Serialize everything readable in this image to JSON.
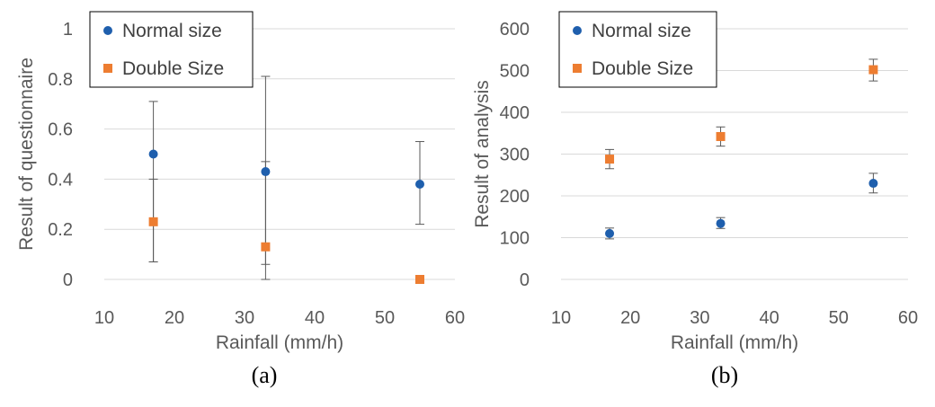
{
  "chart_data": [
    {
      "type": "scatter",
      "caption": "(a)",
      "xlabel": "Rainfall (mm/h)",
      "ylabel": "Result of questionnaire",
      "xlim": [
        10,
        60
      ],
      "ylim": [
        0,
        1
      ],
      "xticks": [
        "10",
        "20",
        "30",
        "40",
        "50",
        "60"
      ],
      "yticks": [
        "0",
        "0.2",
        "0.4",
        "0.6",
        "0.8",
        "1"
      ],
      "grid": "horizontal",
      "legend_position": "top-left",
      "series": [
        {
          "name": "Normal size",
          "marker": "circle",
          "color": "#1F5FAD",
          "points": [
            {
              "x": 17,
              "y": 0.5,
              "err_low": 0.07,
              "err_high": 0.71
            },
            {
              "x": 33,
              "y": 0.43,
              "err_low": 0.0,
              "err_high": 0.81
            },
            {
              "x": 55,
              "y": 0.38,
              "err_low": 0.22,
              "err_high": 0.55
            }
          ]
        },
        {
          "name": "Double Size",
          "marker": "square",
          "color": "#ED7D31",
          "points": [
            {
              "x": 17,
              "y": 0.23,
              "err_low": 0.07,
              "err_high": 0.4
            },
            {
              "x": 33,
              "y": 0.13,
              "err_low": 0.06,
              "err_high": 0.47
            },
            {
              "x": 55,
              "y": 0.0
            }
          ]
        }
      ]
    },
    {
      "type": "scatter",
      "caption": "(b)",
      "xlabel": "Rainfall (mm/h)",
      "ylabel": "Result of analysis",
      "xlim": [
        10,
        60
      ],
      "ylim": [
        0,
        600
      ],
      "xticks": [
        "10",
        "20",
        "30",
        "40",
        "50",
        "60"
      ],
      "yticks": [
        "0",
        "100",
        "200",
        "300",
        "400",
        "500",
        "600"
      ],
      "grid": "horizontal",
      "legend_position": "top-left",
      "series": [
        {
          "name": "Normal size",
          "marker": "circle",
          "color": "#1F5FAD",
          "points": [
            {
              "x": 17,
              "y": 110,
              "err_low": 97,
              "err_high": 123
            },
            {
              "x": 33,
              "y": 134,
              "err_low": 122,
              "err_high": 148
            },
            {
              "x": 55,
              "y": 230,
              "err_low": 207,
              "err_high": 254
            }
          ]
        },
        {
          "name": "Double Size",
          "marker": "square",
          "color": "#ED7D31",
          "points": [
            {
              "x": 17,
              "y": 288,
              "err_low": 265,
              "err_high": 311
            },
            {
              "x": 33,
              "y": 342,
              "err_low": 319,
              "err_high": 365
            },
            {
              "x": 55,
              "y": 502,
              "err_low": 475,
              "err_high": 527
            }
          ]
        }
      ]
    }
  ]
}
